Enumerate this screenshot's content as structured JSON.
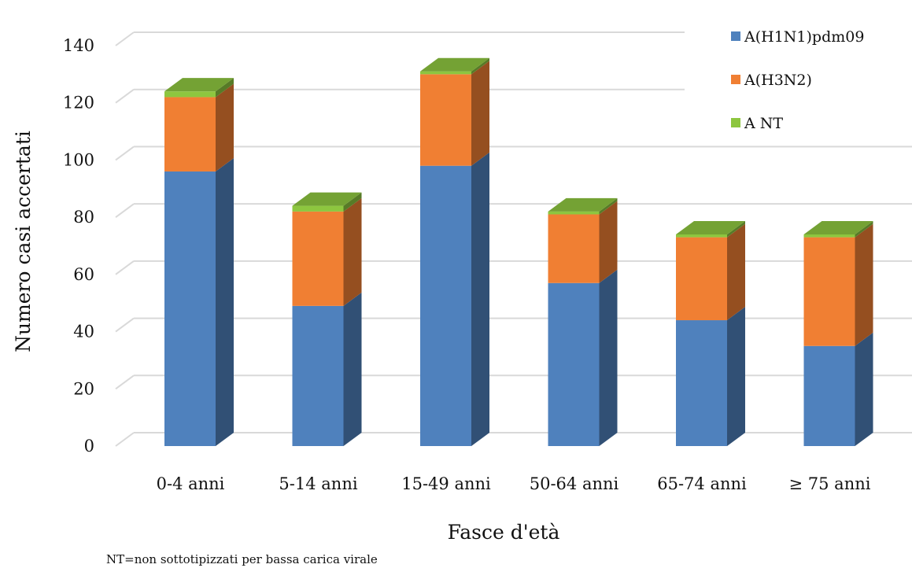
{
  "chart_data": {
    "type": "bar",
    "stacked": true,
    "three_d": true,
    "categories": [
      "0-4 anni",
      "5-14 anni",
      "15-49 anni",
      "50-64 anni",
      "65-74 anni",
      "≥ 75 anni"
    ],
    "series": [
      {
        "name": "A(H1N1)pdm09",
        "values": [
          96,
          49,
          98,
          57,
          44,
          35
        ],
        "color": "#4f81bd"
      },
      {
        "name": "A(H3N2)",
        "values": [
          26,
          33,
          32,
          24,
          29,
          38
        ],
        "color": "#f07f33"
      },
      {
        "name": "A NT",
        "values": [
          2,
          2,
          1,
          1,
          1,
          1
        ],
        "color": "#8dc63f"
      }
    ],
    "xlabel": "Fasce d'età",
    "ylabel": "Numero casi accertati",
    "ylim": [
      0,
      140
    ],
    "yticks": [
      0,
      20,
      40,
      60,
      80,
      100,
      120,
      140
    ],
    "grid": true,
    "legend_position": "top-right"
  },
  "footnote": "NT=non sottotipizzati per bassa carica virale"
}
